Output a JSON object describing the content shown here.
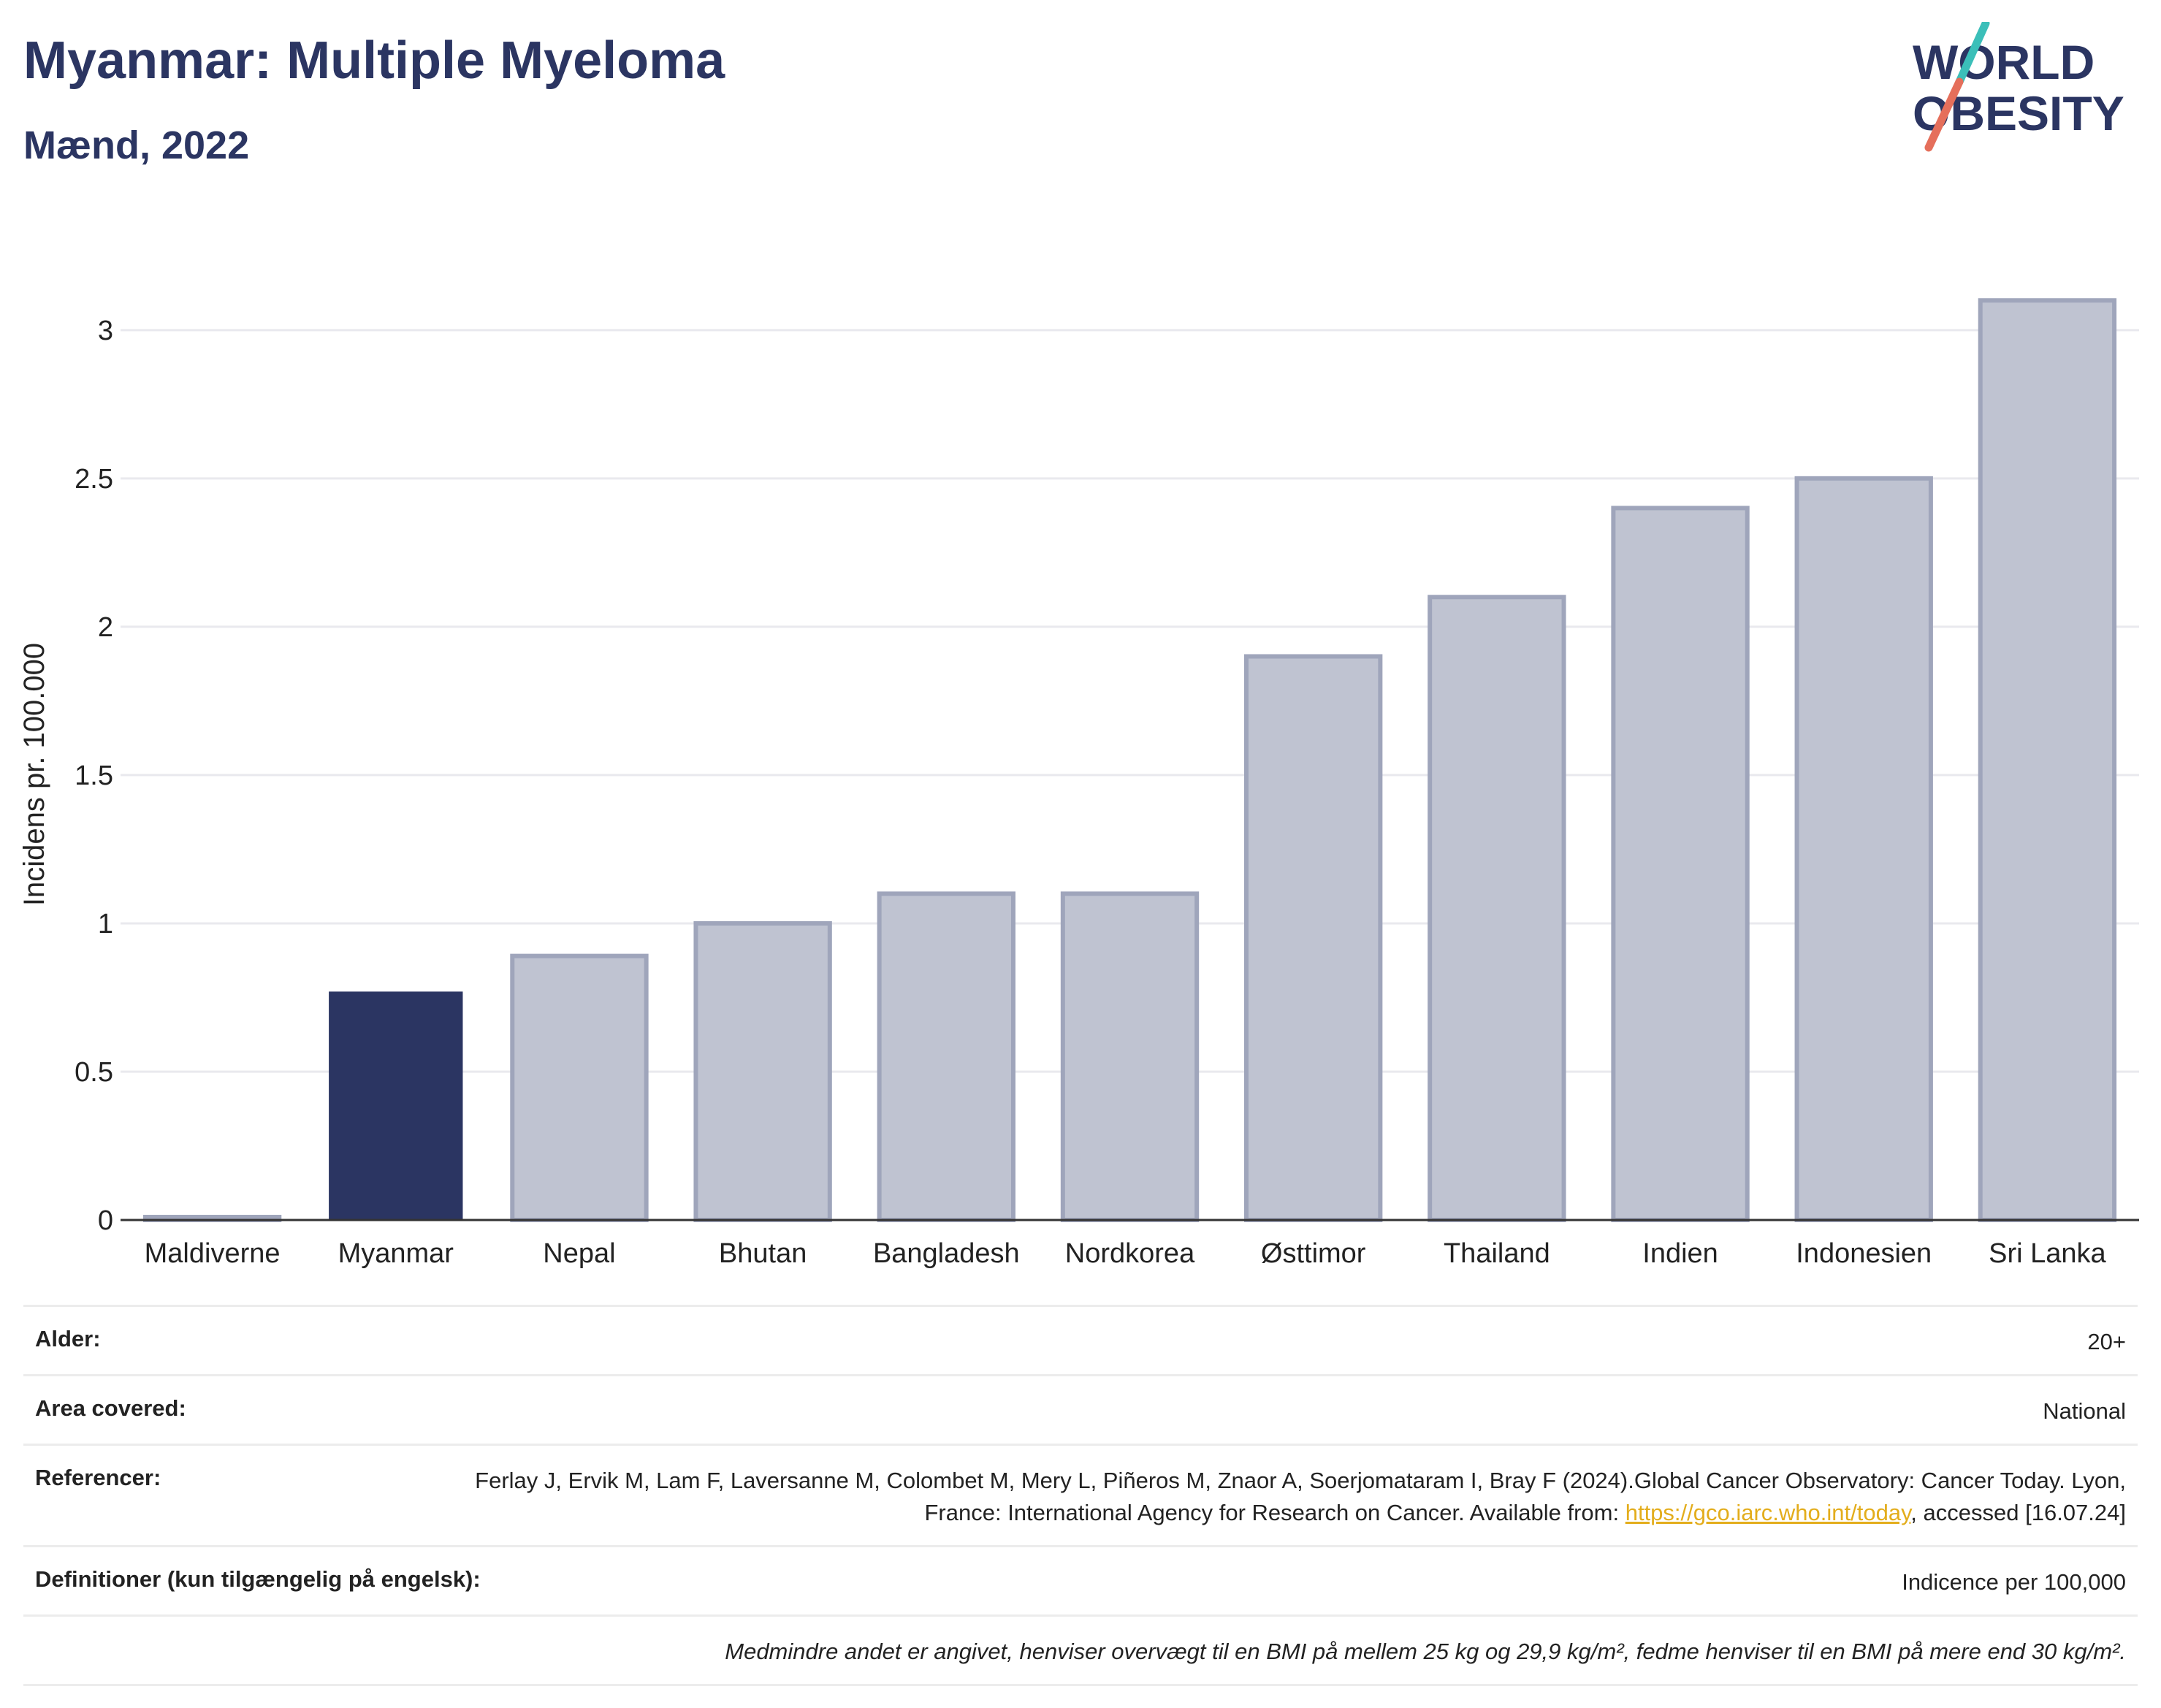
{
  "header": {
    "title": "Myanmar: Multiple Myeloma",
    "subtitle": "Mænd, 2022"
  },
  "logo": {
    "line1": "WORLD",
    "line2": "OBESITY"
  },
  "colors": {
    "highlight": "#2b3562",
    "bar": "#bfc3d1",
    "bar_border": "#9fa5bb",
    "text": "#2b3562",
    "accent_teal": "#3bbfb9",
    "accent_coral": "#e56f5b",
    "link": "#e3ad1c"
  },
  "chart_data": {
    "type": "bar",
    "categories": [
      "Maldiverne",
      "Myanmar",
      "Nepal",
      "Bhutan",
      "Bangladesh",
      "Nordkorea",
      "Østtimor",
      "Thailand",
      "Indien",
      "Indonesien",
      "Sri Lanka"
    ],
    "values": [
      0.01,
      0.77,
      0.89,
      1.0,
      1.1,
      1.1,
      1.9,
      2.1,
      2.4,
      2.5,
      3.1
    ],
    "highlight": "Myanmar",
    "ylabel": "Incidens pr. 100.000",
    "ylim": [
      0,
      3.3
    ],
    "yticks": [
      0,
      0.5,
      1,
      1.5,
      2,
      2.5,
      3
    ],
    "ytick_labels": [
      "0",
      "0.5",
      "1",
      "1.5",
      "2",
      "2.5",
      "3"
    ],
    "grid": true
  },
  "meta": {
    "age_label": "Alder:",
    "age_value": "20+",
    "area_label": "Area covered:",
    "area_value": "National",
    "ref_label": "Referencer:",
    "ref_text_1": "Ferlay J, Ervik M, Lam F, Laversanne M, Colombet M, Mery L, Piñeros M, Znaor A, Soerjomataram I, Bray F (2024).Global Cancer Observatory: Cancer Today. Lyon, France: International Agency for Research on Cancer. Available from: ",
    "ref_link": "https://gco.iarc.who.int/today",
    "ref_text_2": ", accessed [16.07.24]",
    "def_label": "Definitioner (kun tilgængelig på engelsk):",
    "def_value": "Indicence per 100,000",
    "note": "Medmindre andet er angivet, henviser overvægt til en BMI på mellem 25 kg og 29,9 kg/m², fedme henviser til en BMI på mere end 30 kg/m²."
  }
}
